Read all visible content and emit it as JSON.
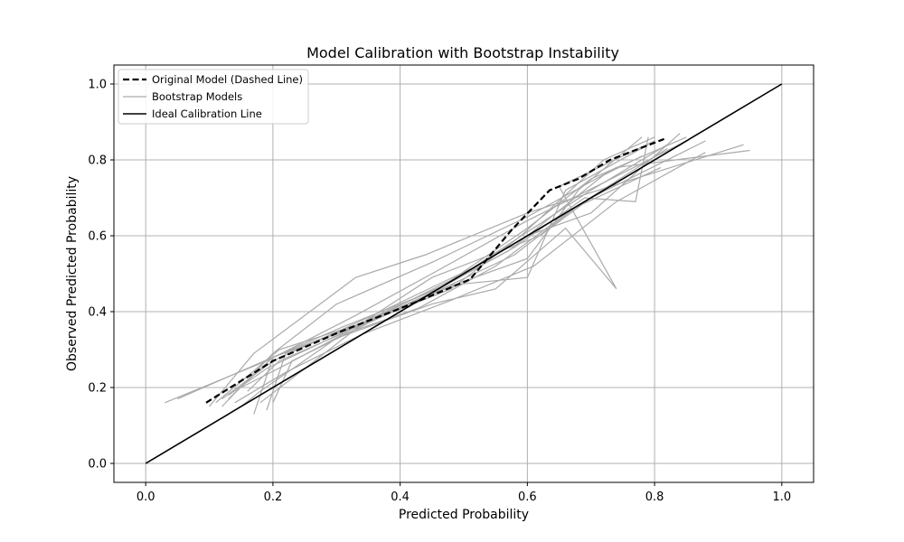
{
  "chart_data": {
    "type": "line",
    "title": "Model Calibration with Bootstrap Instability",
    "xlabel": "Predicted Probability",
    "ylabel": "Observed Predicted Probability",
    "xlim": [
      -0.05,
      1.05
    ],
    "ylim": [
      -0.05,
      1.05
    ],
    "x_ticks": [
      0.0,
      0.2,
      0.4,
      0.6,
      0.8,
      1.0
    ],
    "y_ticks": [
      0.0,
      0.2,
      0.4,
      0.6,
      0.8,
      1.0
    ],
    "x_tick_labels": [
      "0.0",
      "0.2",
      "0.4",
      "0.6",
      "0.8",
      "1.0"
    ],
    "y_tick_labels": [
      "0.0",
      "0.2",
      "0.4",
      "0.6",
      "0.8",
      "1.0"
    ],
    "grid": true,
    "legend_position": "upper-left",
    "legend": [
      {
        "label": "Original Model (Dashed Line)",
        "style": "dashed",
        "color": "#000000"
      },
      {
        "label": "Bootstrap Models",
        "style": "solid",
        "color": "#aaaaaa"
      },
      {
        "label": "Ideal Calibration Line",
        "style": "solid",
        "color": "#000000"
      }
    ],
    "series": [
      {
        "name": "Original Model (Dashed Line)",
        "color": "#000000",
        "style": "dashed",
        "x": [
          0.095,
          0.2,
          0.31,
          0.41,
          0.51,
          0.575,
          0.635,
          0.68,
          0.73,
          0.815
        ],
        "y": [
          0.16,
          0.27,
          0.35,
          0.415,
          0.485,
          0.615,
          0.72,
          0.75,
          0.8,
          0.855
        ]
      },
      {
        "name": "Ideal Calibration Line",
        "color": "#000000",
        "style": "solid",
        "x": [
          0.0,
          1.0
        ],
        "y": [
          0.0,
          1.0
        ]
      }
    ],
    "bootstrap_series": [
      {
        "x": [
          0.03,
          0.19,
          0.33,
          0.45,
          0.6,
          0.72,
          0.85
        ],
        "y": [
          0.16,
          0.27,
          0.39,
          0.5,
          0.64,
          0.74,
          0.85
        ]
      },
      {
        "x": [
          0.05,
          0.2,
          0.34,
          0.45,
          0.62,
          0.7,
          0.88
        ],
        "y": [
          0.17,
          0.28,
          0.37,
          0.49,
          0.6,
          0.7,
          0.85
        ]
      },
      {
        "x": [
          0.1,
          0.17,
          0.33,
          0.44,
          0.6,
          0.73,
          0.94
        ],
        "y": [
          0.15,
          0.29,
          0.49,
          0.55,
          0.66,
          0.73,
          0.84
        ]
      },
      {
        "x": [
          0.12,
          0.2,
          0.3,
          0.45,
          0.6,
          0.74,
          0.95
        ],
        "y": [
          0.15,
          0.29,
          0.42,
          0.53,
          0.65,
          0.78,
          0.825
        ]
      },
      {
        "x": [
          0.13,
          0.19,
          0.38,
          0.5,
          0.6,
          0.7,
          0.82
        ],
        "y": [
          0.18,
          0.25,
          0.4,
          0.5,
          0.61,
          0.72,
          0.84
        ]
      },
      {
        "x": [
          0.11,
          0.21,
          0.36,
          0.48,
          0.59,
          0.72,
          0.8
        ],
        "y": [
          0.16,
          0.3,
          0.38,
          0.46,
          0.6,
          0.8,
          0.86
        ]
      },
      {
        "x": [
          0.17,
          0.2,
          0.31,
          0.46,
          0.6,
          0.7,
          0.85
        ],
        "y": [
          0.13,
          0.28,
          0.36,
          0.46,
          0.62,
          0.75,
          0.86
        ]
      },
      {
        "x": [
          0.19,
          0.22,
          0.4,
          0.5,
          0.6,
          0.68,
          0.78
        ],
        "y": [
          0.14,
          0.29,
          0.41,
          0.48,
          0.54,
          0.72,
          0.86
        ]
      },
      {
        "x": [
          0.2,
          0.23,
          0.35,
          0.48,
          0.6,
          0.66,
          0.79
        ],
        "y": [
          0.16,
          0.27,
          0.37,
          0.47,
          0.49,
          0.72,
          0.84
        ]
      },
      {
        "x": [
          0.14,
          0.22,
          0.34,
          0.48,
          0.61,
          0.74,
          0.88
        ],
        "y": [
          0.16,
          0.24,
          0.34,
          0.43,
          0.52,
          0.69,
          0.82
        ]
      },
      {
        "x": [
          0.15,
          0.18,
          0.3,
          0.45,
          0.55,
          0.66,
          0.74,
          0.65,
          0.8
        ],
        "y": [
          0.15,
          0.19,
          0.33,
          0.42,
          0.46,
          0.62,
          0.46,
          0.73,
          0.85
        ]
      },
      {
        "x": [
          0.16,
          0.21,
          0.32,
          0.44,
          0.58,
          0.68,
          0.82
        ],
        "y": [
          0.19,
          0.27,
          0.35,
          0.44,
          0.55,
          0.68,
          0.83
        ]
      },
      {
        "x": [
          0.12,
          0.2,
          0.37,
          0.52,
          0.6,
          0.7,
          0.84
        ],
        "y": [
          0.17,
          0.27,
          0.4,
          0.52,
          0.6,
          0.66,
          0.87
        ]
      },
      {
        "x": [
          0.18,
          0.25,
          0.35,
          0.47,
          0.57,
          0.72,
          0.78
        ],
        "y": [
          0.16,
          0.25,
          0.38,
          0.47,
          0.56,
          0.76,
          0.81
        ]
      },
      {
        "x": [
          0.13,
          0.2,
          0.33,
          0.45,
          0.58,
          0.69,
          0.77,
          0.79
        ],
        "y": [
          0.17,
          0.28,
          0.36,
          0.45,
          0.57,
          0.7,
          0.69,
          0.86
        ]
      },
      {
        "x": [
          0.15,
          0.22,
          0.31,
          0.43,
          0.55,
          0.67,
          0.81
        ],
        "y": [
          0.2,
          0.26,
          0.34,
          0.41,
          0.52,
          0.67,
          0.78
        ]
      }
    ]
  }
}
